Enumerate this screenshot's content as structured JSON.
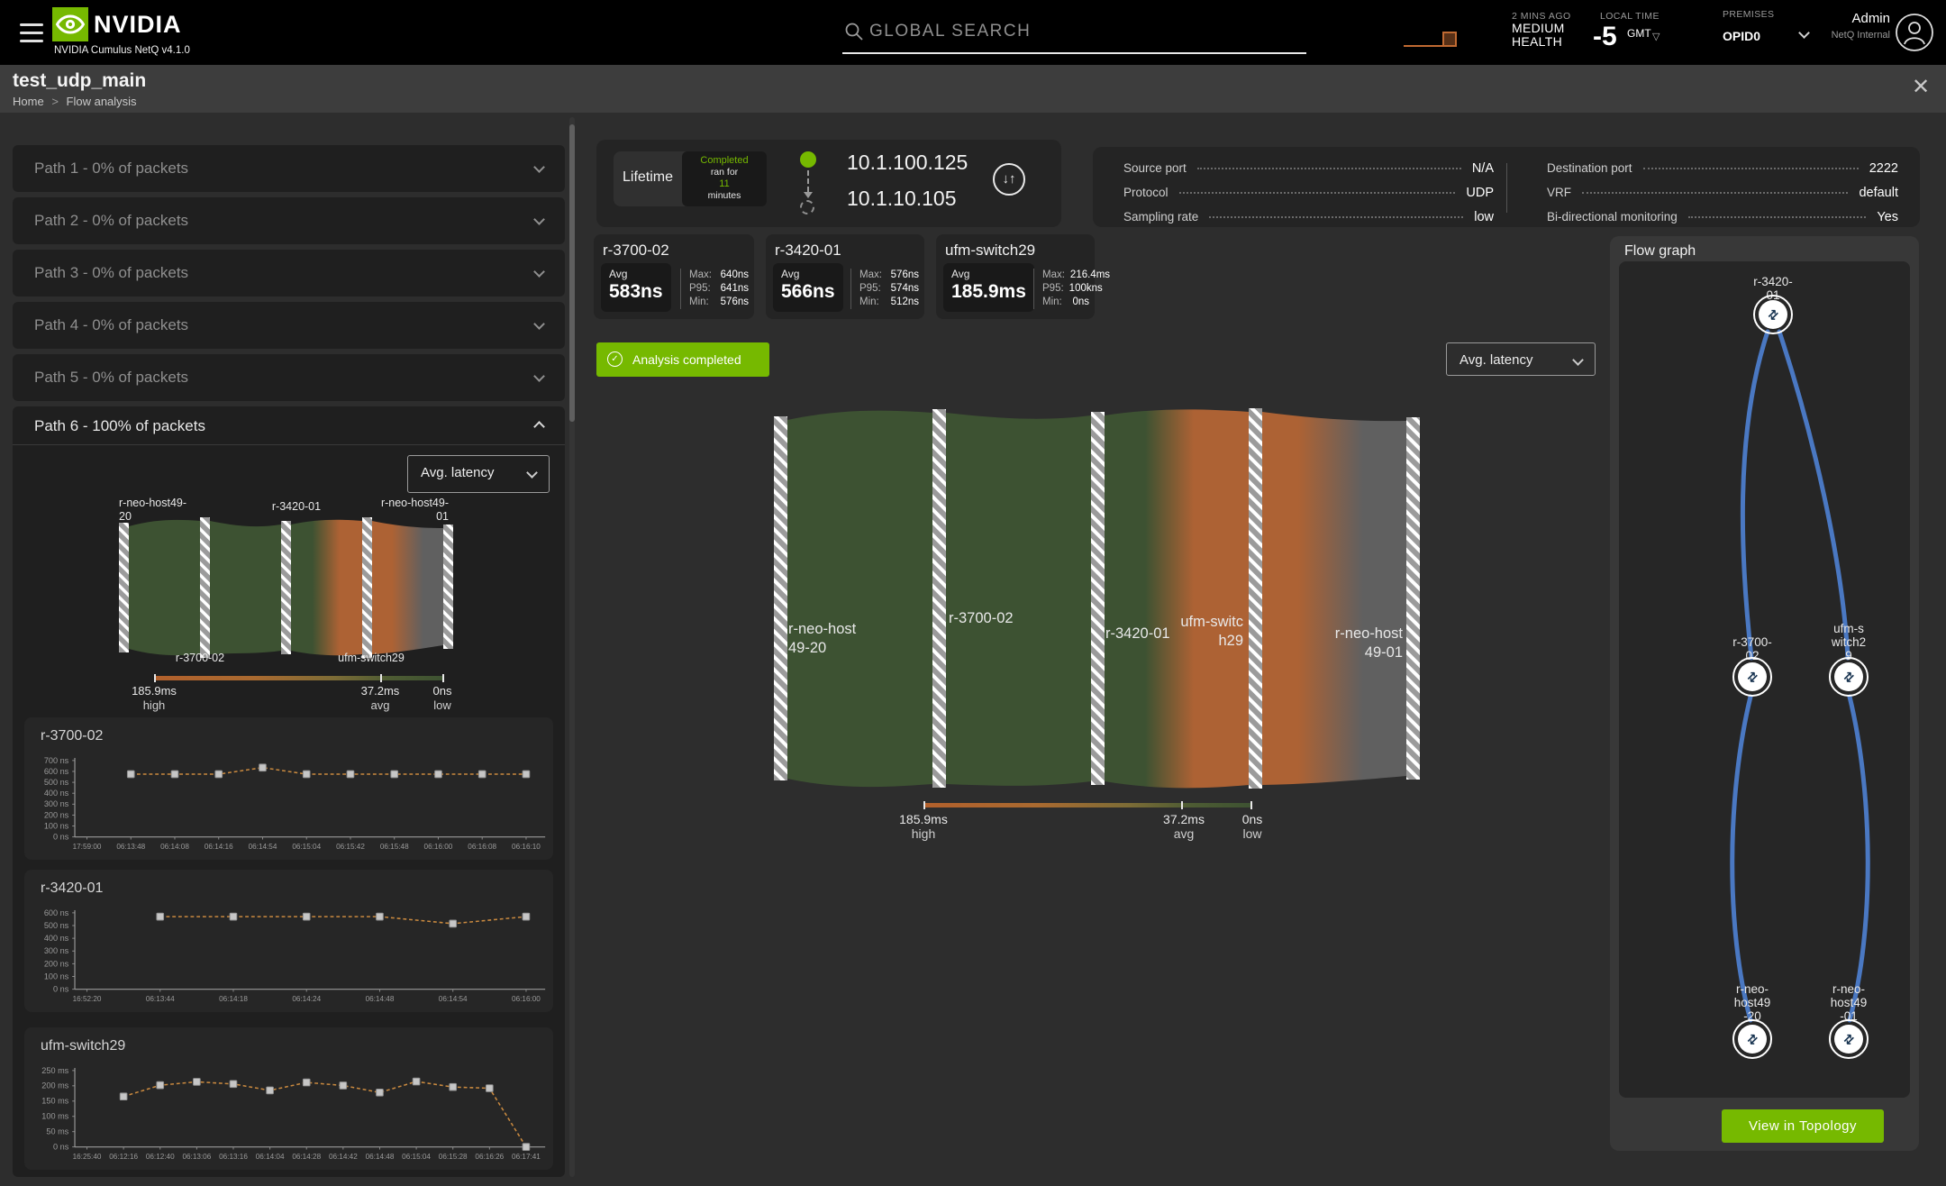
{
  "colors": {
    "nvidia_green": "#76b900",
    "chart_line_orange": "#c9893f",
    "sankey_green": "#3d5232",
    "sankey_orange": "#ad6234",
    "sankey_gray": "#606060",
    "flow_edge_blue": "#4a78c2"
  },
  "header": {
    "brand": "NVIDIA",
    "subtitle": "NVIDIA Cumulus NetQ v4.1.0",
    "search_placeholder": "GLOBAL SEARCH",
    "health_ago": "2 MINS AGO",
    "health_status": "MEDIUM\nHEALTH",
    "local_time_label": "LOCAL TIME",
    "local_time_value": "-5",
    "local_time_zone": "GMT",
    "premises_label": "PREMISES",
    "premises_value": "OPID0",
    "user_name": "Admin",
    "user_org": "NetQ Internal"
  },
  "title_bar": {
    "title": "test_udp_main",
    "breadcrumb_home": "Home",
    "breadcrumb_sep": ">",
    "breadcrumb_current": "Flow analysis"
  },
  "sidebar": {
    "paths": [
      {
        "label": "Path 1 - 0% of packets"
      },
      {
        "label": "Path 2 - 0% of packets"
      },
      {
        "label": "Path 3 - 0% of packets"
      },
      {
        "label": "Path 4 - 0% of packets"
      },
      {
        "label": "Path 5 - 0% of packets"
      }
    ],
    "path6_label": "Path 6 - 100% of packets",
    "metric_dropdown": "Avg. latency",
    "sankey_top_left": "r-neo-host49-\n20",
    "sankey_top_mid": "r-3420-01",
    "sankey_top_right": "r-neo-host49-\n01",
    "sankey_bottom_left": "r-3700-02",
    "sankey_bottom_right": "ufm-switch29",
    "legend": {
      "high_value": "185.9ms",
      "high_label": "high",
      "avg_value": "37.2ms",
      "avg_label": "avg",
      "low_value": "0ns",
      "low_label": "low"
    }
  },
  "charts": [
    {
      "title": "r-3700-02",
      "chart_data": {
        "type": "line",
        "x": [
          "17:59:00",
          "06:13:48",
          "06:14:08",
          "06:14:16",
          "06:14:54",
          "06:15:04",
          "06:15:42",
          "06:15:48",
          "06:16:00",
          "06:16:08",
          "06:16:10"
        ],
        "values": [
          null,
          575,
          575,
          575,
          635,
          575,
          575,
          575,
          575,
          575,
          575
        ],
        "y_ticks": [
          "700 ns",
          "600 ns",
          "500 ns",
          "400 ns",
          "300 ns",
          "200 ns",
          "100 ns",
          "0 ns"
        ],
        "y_max": 700,
        "unit": "ns",
        "line_style": "dashed",
        "marker": "square",
        "legend_position": "none",
        "grid": false
      }
    },
    {
      "title": "r-3420-01",
      "chart_data": {
        "type": "line",
        "x": [
          "16:52:20",
          "06:13:44",
          "06:14:18",
          "06:14:24",
          "06:14:48",
          "06:14:54",
          "06:16:00"
        ],
        "values": [
          null,
          570,
          570,
          570,
          570,
          515,
          570
        ],
        "y_ticks": [
          "600 ns",
          "500 ns",
          "400 ns",
          "300 ns",
          "200 ns",
          "100 ns",
          "0 ns"
        ],
        "y_max": 600,
        "unit": "ns",
        "line_style": "dashed",
        "marker": "square",
        "legend_position": "none",
        "grid": false
      }
    },
    {
      "title": "ufm-switch29",
      "chart_data": {
        "type": "line",
        "x": [
          "16:25:40",
          "06:12:16",
          "06:12:40",
          "06:13:06",
          "06:13:16",
          "06:14:04",
          "06:14:28",
          "06:14:42",
          "06:14:48",
          "06:15:04",
          "06:15:28",
          "06:16:26",
          "06:17:41"
        ],
        "values": [
          null,
          165,
          202,
          213,
          206,
          185,
          211,
          201,
          178,
          214,
          196,
          192,
          0
        ],
        "y_ticks": [
          "250 ms",
          "200 ms",
          "150 ms",
          "100 ms",
          "50 ms",
          "0 ns"
        ],
        "y_max": 250,
        "unit": "ms",
        "line_style": "dashed",
        "marker": "square",
        "legend_position": "none",
        "grid": false
      }
    }
  ],
  "main": {
    "lifetime_label": "Lifetime",
    "status": "Completed",
    "ran_for": "ran for",
    "duration": "11",
    "duration_unit": "minutes",
    "source_ip": "10.1.100.125",
    "dest_ip": "10.1.10.105",
    "details_left": [
      {
        "label": "Source port",
        "value": "N/A"
      },
      {
        "label": "Protocol",
        "value": "UDP"
      },
      {
        "label": "Sampling rate",
        "value": "low"
      }
    ],
    "details_right": [
      {
        "label": "Destination port",
        "value": "2222"
      },
      {
        "label": "VRF",
        "value": "default"
      },
      {
        "label": "Bi-directional monitoring",
        "value": "Yes"
      }
    ],
    "stat_cards": [
      {
        "title": "r-3700-02",
        "avg_label": "Avg",
        "avg_value": "583ns",
        "stats": [
          {
            "k": "Max:",
            "v": "640ns"
          },
          {
            "k": "P95:",
            "v": "641ns"
          },
          {
            "k": "Min:",
            "v": "576ns"
          }
        ]
      },
      {
        "title": "r-3420-01",
        "avg_label": "Avg",
        "avg_value": "566ns",
        "stats": [
          {
            "k": "Max:",
            "v": "576ns"
          },
          {
            "k": "P95:",
            "v": "574ns"
          },
          {
            "k": "Min:",
            "v": "512ns"
          }
        ]
      },
      {
        "title": "ufm-switch29",
        "avg_label": "Avg",
        "avg_value": "185.9ms",
        "stats": [
          {
            "k": "Max:",
            "v": "216.4ms"
          },
          {
            "k": "P95:",
            "v": "100kns"
          },
          {
            "k": "Min:",
            "v": "0ns"
          }
        ]
      }
    ],
    "banner": "Analysis completed",
    "metric_dropdown": "Avg. latency",
    "sankey": {
      "node1": "r-neo-host\n49-20",
      "node2": "r-3700-02",
      "node3": "r-3420-01",
      "node4": "ufm-switc\nh29",
      "node5": "r-neo-host\n49-01"
    },
    "legend": {
      "high_value": "185.9ms",
      "high_label": "high",
      "avg_value": "37.2ms",
      "avg_label": "avg",
      "low_value": "0ns",
      "low_label": "low"
    }
  },
  "flow_graph": {
    "title": "Flow graph",
    "node_top": "r-3420-\n01",
    "node_mid_left": "r-3700-\n02",
    "node_mid_right": "ufm-s\nwitch2\n9",
    "node_bottom_left": "r-neo-\nhost49\n-20",
    "node_bottom_right": "r-neo-\nhost49\n-01",
    "button": "View in Topology"
  }
}
